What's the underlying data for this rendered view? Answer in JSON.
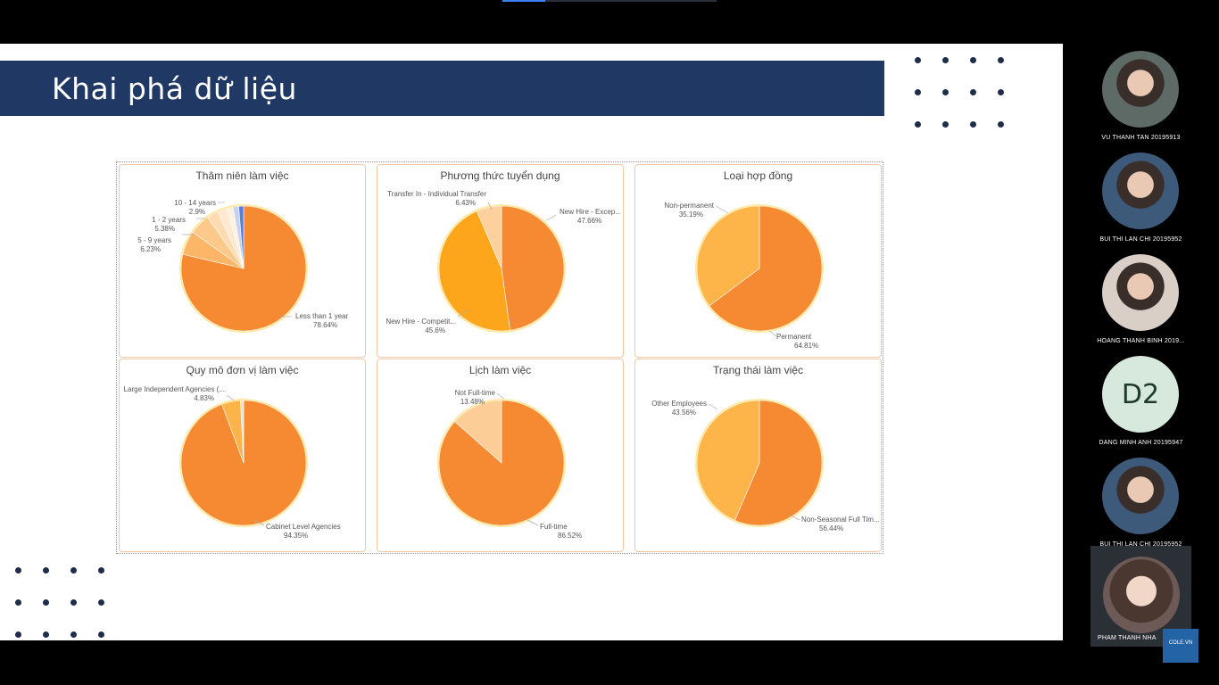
{
  "slide": {
    "title": "Khai phá dữ liệu"
  },
  "chart_data": [
    {
      "type": "pie",
      "title": "Thâm niên làm việc",
      "slices": [
        {
          "label": "Less than 1 year",
          "value": 78.64,
          "pct_label": "78.64%",
          "color": "#f58a33"
        },
        {
          "label": "5 - 9 years",
          "value": 6.23,
          "pct_label": "6.23%",
          "color": "#fdb667"
        },
        {
          "label": "1 - 2 years",
          "value": 5.38,
          "pct_label": "5.38%",
          "color": "#fdc98b"
        },
        {
          "label": "10 - 14 years",
          "value": 2.9,
          "pct_label": "2.9%",
          "color": "#fedab0"
        },
        {
          "label": "",
          "value": 2.5,
          "pct_label": "",
          "color": "#fee8cf"
        },
        {
          "label": "",
          "value": 1.6,
          "pct_label": "",
          "color": "#fff1e0"
        },
        {
          "label": "",
          "value": 1.5,
          "pct_label": "",
          "color": "#c7d3ee"
        },
        {
          "label": "",
          "value": 1.25,
          "pct_label": "",
          "color": "#5b7fd8"
        }
      ]
    },
    {
      "type": "pie",
      "title": "Phương thức tuyển dụng",
      "slices": [
        {
          "label": "New Hire - Excep...",
          "value": 47.66,
          "pct_label": "47.66%",
          "color": "#f58a33"
        },
        {
          "label": "New Hire - Competit...",
          "value": 45.6,
          "pct_label": "45.6%",
          "color": "#fda61c"
        },
        {
          "label": "Transfer In - Individual Transfer",
          "value": 6.43,
          "pct_label": "6.43%",
          "color": "#fdd09e"
        }
      ]
    },
    {
      "type": "pie",
      "title": "Loại hợp đồng",
      "slices": [
        {
          "label": "Permanent",
          "value": 64.81,
          "pct_label": "64.81%",
          "color": "#f58a33"
        },
        {
          "label": "Non-permanent",
          "value": 35.19,
          "pct_label": "35.19%",
          "color": "#fdb54a"
        }
      ]
    },
    {
      "type": "pie",
      "title": "Quy mô đơn vị làm việc",
      "slices": [
        {
          "label": "Cabinet Level Agencies",
          "value": 94.35,
          "pct_label": "94.35%",
          "color": "#f58a33"
        },
        {
          "label": "Large Independent Agencies (...",
          "value": 4.83,
          "pct_label": "4.83%",
          "color": "#fdb54a"
        },
        {
          "label": "",
          "value": 0.82,
          "pct_label": "",
          "color": "#fedfbd"
        }
      ]
    },
    {
      "type": "pie",
      "title": "Lịch làm việc",
      "slices": [
        {
          "label": "Full-time",
          "value": 86.52,
          "pct_label": "86.52%",
          "color": "#f58a33"
        },
        {
          "label": "Not Full-time",
          "value": 13.48,
          "pct_label": "13.48%",
          "color": "#fdcd98"
        }
      ]
    },
    {
      "type": "pie",
      "title": "Trạng thái làm việc",
      "slices": [
        {
          "label": "Non-Seasonal Full Tim...",
          "value": 56.44,
          "pct_label": "56.44%",
          "color": "#f58a33"
        },
        {
          "label": "Other Employees",
          "value": 43.56,
          "pct_label": "43.56%",
          "color": "#fdb54a"
        }
      ]
    }
  ],
  "participants": [
    {
      "name": "VU THANH TAN 20195913",
      "avatar": "rabbit-avatar-photo",
      "bg": "#5e6a66"
    },
    {
      "name": "BUI THI LAN CHI 20195952",
      "avatar": "person-photo",
      "bg": "#3d5a7a"
    },
    {
      "name": "HOANG THANH BINH 2019...",
      "avatar": "person-photo",
      "bg": "#d9cfc6"
    },
    {
      "name": "DANG MINH ANH 20195947",
      "initials": "D2",
      "bg": "#d7e8dd"
    },
    {
      "name": "BUI THI LAN CHI 20195952",
      "avatar": "person-photo",
      "bg": "#3d5a7a"
    },
    {
      "name": "PHAM THANH NHA",
      "avatar": "person-photo",
      "bg": "#6d5a56"
    }
  ],
  "watermark": {
    "text": "COLE.VN"
  }
}
